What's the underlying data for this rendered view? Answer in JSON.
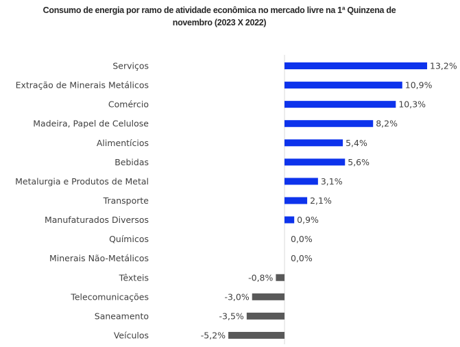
{
  "chart_data": {
    "type": "bar",
    "orientation": "horizontal",
    "title_line1": "Consumo de energia por ramo de atividade econômica no mercado livre na 1ª Quinzena de",
    "title_line2": "novembro (2023 X 2022)",
    "categories": [
      "Serviços",
      "Extração de Minerais Metálicos",
      "Comércio",
      "Madeira, Papel de Celulose",
      "Alimentícios",
      "Bebidas",
      "Metalurgia e Produtos de Metal",
      "Transporte",
      "Manufaturados Diversos",
      "Químicos",
      "Minerais Não-Metálicos",
      "Têxteis",
      "Telecomunicações",
      "Saneamento",
      "Veículos"
    ],
    "values": [
      13.2,
      10.9,
      10.3,
      8.2,
      5.4,
      5.6,
      3.1,
      2.1,
      0.9,
      0.0,
      0.0,
      -0.8,
      -3.0,
      -3.5,
      -5.2
    ],
    "labels": [
      "13,2%",
      "10,9%",
      "10,3%",
      "8,2%",
      "5,4%",
      "5,6%",
      "3,1%",
      "2,1%",
      "0,9%",
      "0,0%",
      "0,0%",
      "-0,8%",
      "-3,0%",
      "-3,5%",
      "-5,2%"
    ],
    "colors": {
      "positive": "#0d33ec",
      "negative": "#595959",
      "axis": "#d9d9d9"
    },
    "xlim": [
      -5.2,
      13.2
    ],
    "grid": false,
    "legend": "none"
  }
}
